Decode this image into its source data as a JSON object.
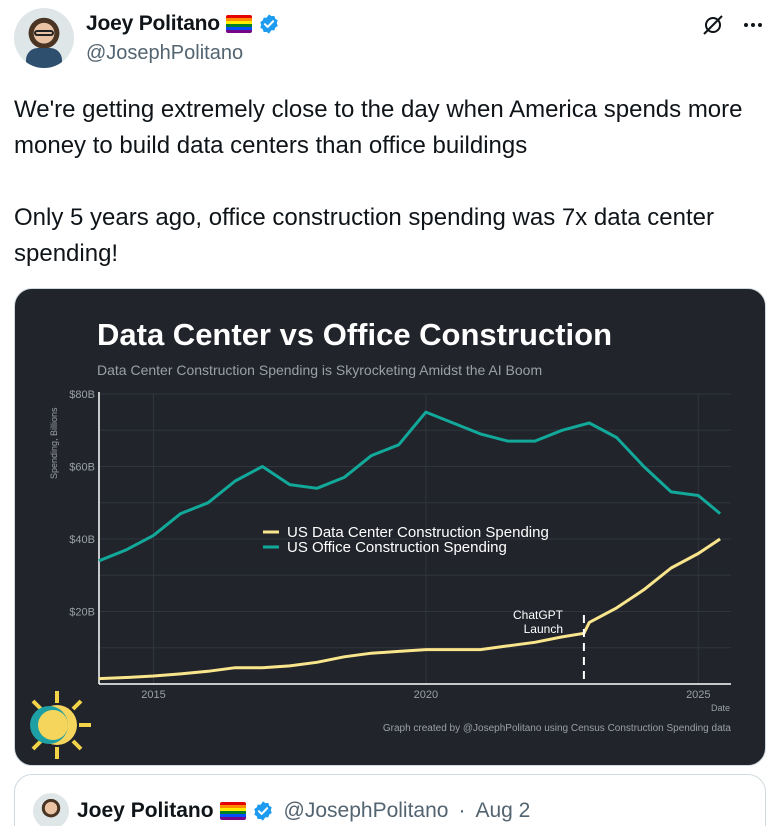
{
  "author": {
    "name": "Joey Politano",
    "handle": "@JosephPolitano"
  },
  "tweet": {
    "text": "We're getting extremely close to the day when America spends more money to build data centers than office buildings\n\nOnly 5 years ago, office construction spending was 7x data center spending!"
  },
  "icons": [
    "grok-icon",
    "more-icon",
    "verified-icon",
    "rainbow-flag-icon"
  ],
  "colors": {
    "card_bg": "#21242b",
    "data_center_line": "#f8e58c",
    "office_line": "#12a89a",
    "verified": "#1d9bf0"
  },
  "chart_data": {
    "type": "line",
    "title": "Data Center vs Office Construction",
    "subtitle": "Data Center Construction Spending is Skyrocketing Amidst the AI Boom",
    "xlabel": "Date",
    "ylabel": "Spending, Billions",
    "xlim": [
      2014,
      2025.6
    ],
    "ylim": [
      0,
      80
    ],
    "x_ticks": [
      2015,
      2020,
      2025
    ],
    "y_ticks": [
      20,
      40,
      60,
      80
    ],
    "y_tick_labels": [
      "$20B",
      "$40B",
      "$60B",
      "$80B"
    ],
    "grid": true,
    "legend_placement": "center-left",
    "annotation": {
      "text_line1": "ChatGPT",
      "text_line2": "Launch",
      "x": 2022.9
    },
    "credit": "Graph created by @JosephPolitano using Census Construction Spending data",
    "series": [
      {
        "name": "US Data Center Construction Spending",
        "color": "#f8e58c",
        "x": [
          2014.0,
          2014.5,
          2015.0,
          2015.5,
          2016.0,
          2016.5,
          2017.0,
          2017.5,
          2018.0,
          2018.5,
          2019.0,
          2019.5,
          2020.0,
          2020.5,
          2021.0,
          2021.5,
          2022.0,
          2022.5,
          2022.9,
          2023.0,
          2023.5,
          2024.0,
          2024.5,
          2025.0,
          2025.4
        ],
        "values": [
          1.5,
          1.8,
          2.2,
          2.8,
          3.5,
          4.5,
          4.5,
          5,
          6,
          7.5,
          8.5,
          9,
          9.5,
          9.5,
          9.5,
          10.5,
          11.5,
          13,
          14,
          17,
          21,
          26,
          32,
          36,
          40
        ]
      },
      {
        "name": "US Office Construction Spending",
        "color": "#12a89a",
        "x": [
          2014.0,
          2014.5,
          2015.0,
          2015.5,
          2016.0,
          2016.5,
          2017.0,
          2017.5,
          2018.0,
          2018.5,
          2019.0,
          2019.5,
          2020.0,
          2020.5,
          2021.0,
          2021.5,
          2022.0,
          2022.5,
          2023.0,
          2023.5,
          2024.0,
          2024.5,
          2025.0,
          2025.4
        ],
        "values": [
          34,
          37,
          41,
          47,
          50,
          56,
          60,
          55,
          54,
          57,
          63,
          66,
          75,
          72,
          69,
          67,
          67,
          70,
          72,
          68,
          60,
          53,
          52,
          47
        ]
      }
    ]
  },
  "quote": {
    "name": "Joey Politano",
    "handle": "@JosephPolitano",
    "separator": "·",
    "date": "Aug 2"
  }
}
